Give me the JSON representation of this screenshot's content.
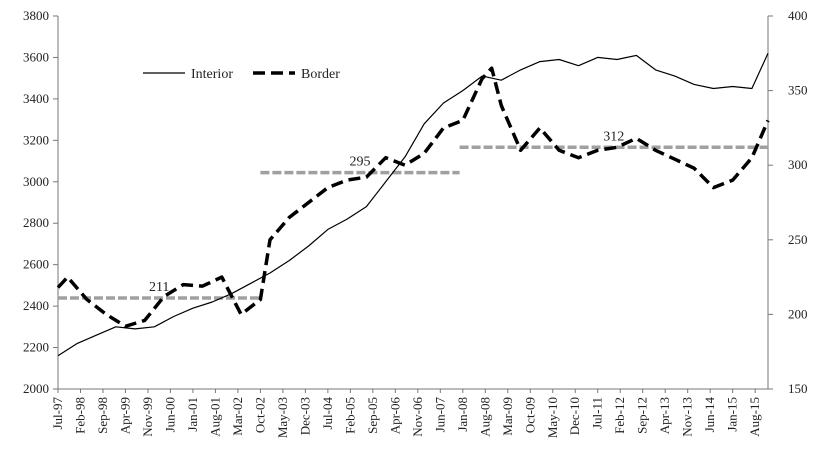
{
  "chart_data": {
    "type": "line",
    "title": "",
    "xlabel": "",
    "ylabel_left": "",
    "ylabel_right": "",
    "x_range": [
      "Jul-97",
      "Dec-15"
    ],
    "x_tick_labels": [
      "Jul-97",
      "Feb-98",
      "Sep-98",
      "Apr-99",
      "Nov-99",
      "Jun-00",
      "Jan-01",
      "Aug-01",
      "Mar-02",
      "Oct-02",
      "May-03",
      "Dec-03",
      "Jul-04",
      "Feb-05",
      "Sep-05",
      "Apr-06",
      "Nov-06",
      "Jun-07",
      "Jan-08",
      "Aug-08",
      "Mar-09",
      "Oct-09",
      "May-10",
      "Dec-10",
      "Jul-11",
      "Feb-12",
      "Sep-12",
      "Apr-13",
      "Nov-13",
      "Jun-14",
      "Jan-15",
      "Aug-15"
    ],
    "y_left": {
      "min": 2000,
      "max": 3800,
      "ticks": [
        2000,
        2200,
        2400,
        2600,
        2800,
        3000,
        3200,
        3400,
        3600,
        3800
      ]
    },
    "y_right": {
      "min": 150,
      "max": 400,
      "ticks": [
        150,
        200,
        250,
        300,
        350,
        400
      ]
    },
    "grid": false,
    "legend": {
      "position": "top-left",
      "entries": [
        "Interior",
        "Border"
      ]
    },
    "series": [
      {
        "name": "Interior",
        "axis": "left",
        "style": "solid",
        "color": "#000000",
        "points": [
          [
            "Jul-97",
            2160
          ],
          [
            "Jan-98",
            2220
          ],
          [
            "Jul-98",
            2260
          ],
          [
            "Jan-99",
            2300
          ],
          [
            "Jul-99",
            2290
          ],
          [
            "Jan-00",
            2300
          ],
          [
            "Jul-00",
            2350
          ],
          [
            "Jan-01",
            2390
          ],
          [
            "Jul-01",
            2420
          ],
          [
            "Jan-02",
            2460
          ],
          [
            "Jul-02",
            2510
          ],
          [
            "Jan-03",
            2560
          ],
          [
            "Jul-03",
            2620
          ],
          [
            "Jan-04",
            2690
          ],
          [
            "Jul-04",
            2770
          ],
          [
            "Jan-05",
            2820
          ],
          [
            "Jul-05",
            2880
          ],
          [
            "Jan-06",
            3000
          ],
          [
            "Jul-06",
            3120
          ],
          [
            "Jan-07",
            3280
          ],
          [
            "Jul-07",
            3380
          ],
          [
            "Jan-08",
            3440
          ],
          [
            "Jul-08",
            3510
          ],
          [
            "Jan-09",
            3490
          ],
          [
            "Jul-09",
            3540
          ],
          [
            "Jan-10",
            3580
          ],
          [
            "Jul-10",
            3590
          ],
          [
            "Jan-11",
            3560
          ],
          [
            "Jul-11",
            3600
          ],
          [
            "Jan-12",
            3590
          ],
          [
            "Jul-12",
            3610
          ],
          [
            "Jan-13",
            3540
          ],
          [
            "Jul-13",
            3510
          ],
          [
            "Jan-14",
            3470
          ],
          [
            "Jul-14",
            3450
          ],
          [
            "Jan-15",
            3460
          ],
          [
            "Jul-15",
            3450
          ],
          [
            "Dec-15",
            3620
          ]
        ]
      },
      {
        "name": "Border",
        "axis": "right",
        "style": "dashed",
        "color": "#000000",
        "points": [
          [
            "Jul-97",
            218
          ],
          [
            "Oct-97",
            225
          ],
          [
            "Apr-98",
            210
          ],
          [
            "Oct-98",
            200
          ],
          [
            "Apr-99",
            192
          ],
          [
            "Oct-99",
            196
          ],
          [
            "Apr-00",
            212
          ],
          [
            "Oct-00",
            220
          ],
          [
            "Apr-01",
            219
          ],
          [
            "Oct-01",
            225
          ],
          [
            "Apr-02",
            200
          ],
          [
            "Oct-02",
            210
          ],
          [
            "Jan-03",
            250
          ],
          [
            "Jul-03",
            265
          ],
          [
            "Jan-04",
            275
          ],
          [
            "Jul-04",
            285
          ],
          [
            "Jan-05",
            290
          ],
          [
            "Jul-05",
            292
          ],
          [
            "Jan-06",
            305
          ],
          [
            "Jul-06",
            300
          ],
          [
            "Jan-07",
            308
          ],
          [
            "Jul-07",
            325
          ],
          [
            "Jan-08",
            330
          ],
          [
            "Jul-08",
            358
          ],
          [
            "Oct-08",
            365
          ],
          [
            "Jan-09",
            340
          ],
          [
            "Jul-09",
            310
          ],
          [
            "Jan-10",
            325
          ],
          [
            "Jul-10",
            310
          ],
          [
            "Jan-11",
            305
          ],
          [
            "Jul-11",
            310
          ],
          [
            "Jan-12",
            312
          ],
          [
            "Jul-12",
            318
          ],
          [
            "Jan-13",
            310
          ],
          [
            "Jul-13",
            304
          ],
          [
            "Jan-14",
            298
          ],
          [
            "Jul-14",
            285
          ],
          [
            "Jan-15",
            290
          ],
          [
            "Jul-15",
            305
          ],
          [
            "Dec-15",
            330
          ]
        ]
      }
    ],
    "average_lines": [
      {
        "label": "211",
        "value": 211,
        "axis": "right",
        "from": "Jul-97",
        "to": "Oct-02",
        "color": "#a0a0a0"
      },
      {
        "label": "295",
        "value": 295,
        "axis": "right",
        "from": "Oct-02",
        "to": "Dec-07",
        "color": "#a0a0a0"
      },
      {
        "label": "312",
        "value": 312,
        "axis": "right",
        "from": "Dec-07",
        "to": "Dec-15",
        "color": "#a0a0a0"
      }
    ]
  }
}
